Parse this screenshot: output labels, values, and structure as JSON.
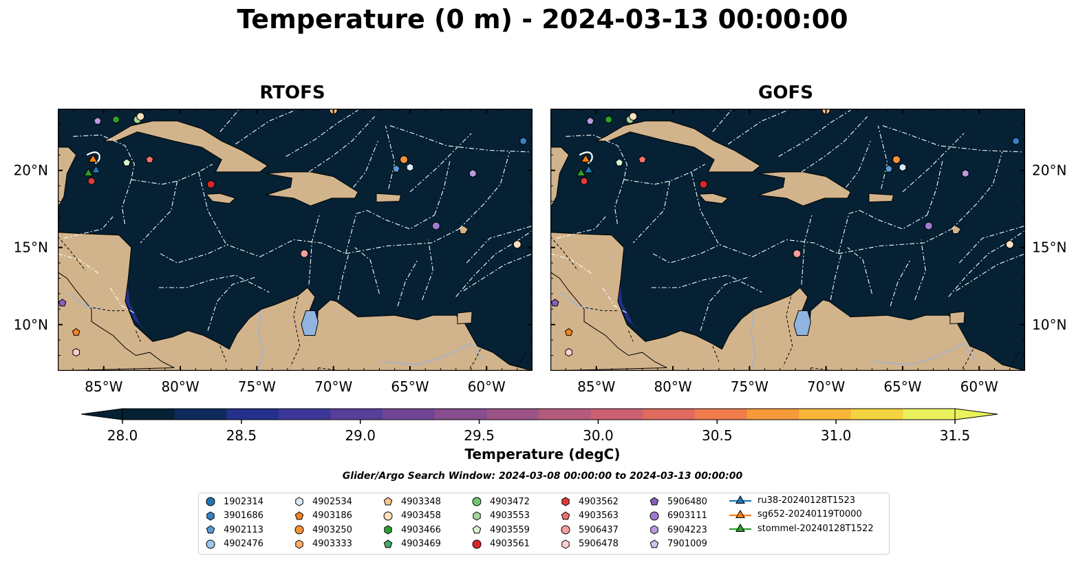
{
  "title": "Temperature (0 m) - 2024-03-13 00:00:00",
  "panels": [
    {
      "name": "RTOFS"
    },
    {
      "name": "GOFS"
    }
  ],
  "map": {
    "lon_range": [
      -88,
      -57
    ],
    "lat_range": [
      7,
      24
    ],
    "lon_ticks": [
      {
        "value": -85,
        "label": "85°W"
      },
      {
        "value": -80,
        "label": "80°W"
      },
      {
        "value": -75,
        "label": "75°W"
      },
      {
        "value": -70,
        "label": "70°W"
      },
      {
        "value": -65,
        "label": "65°W"
      },
      {
        "value": -60,
        "label": "60°W"
      }
    ],
    "lat_ticks": [
      {
        "value": 10,
        "label": "10°N"
      },
      {
        "value": 15,
        "label": "15°N"
      },
      {
        "value": 20,
        "label": "20°N"
      }
    ],
    "colors": {
      "ocean": "#052133",
      "land": "#d2b48c",
      "lake": "#8fb4e0",
      "boundary": "#ffffff"
    }
  },
  "colorbar": {
    "label": "Temperature (degC)",
    "min": 28.0,
    "max": 31.5,
    "step": 0.25,
    "ticks": [
      "28.0",
      "28.5",
      "29.0",
      "29.5",
      "30.0",
      "30.5",
      "31.0",
      "31.5"
    ],
    "colors": [
      "#052133",
      "#0e2a5c",
      "#25308a",
      "#3c3796",
      "#573e98",
      "#6f4594",
      "#874d8d",
      "#9c5486",
      "#b45a7d",
      "#cb6170",
      "#e06a5e",
      "#ef7c4a",
      "#f69a3a",
      "#f7b637",
      "#f4d43e",
      "#e9f25c"
    ],
    "extend_low": "#052133",
    "extend_high": "#e9f25c"
  },
  "search_window": "Glider/Argo Search Window: 2024-03-08 00:00:00 to 2024-03-13 00:00:00",
  "legend": {
    "argo": [
      {
        "label": "1902314",
        "marker": "circle",
        "color": "#1f77b4"
      },
      {
        "label": "3901686",
        "marker": "hexagon",
        "color": "#3a7fc1"
      },
      {
        "label": "4902113",
        "marker": "pentagon",
        "color": "#5b9bd5"
      },
      {
        "label": "4902476",
        "marker": "circle",
        "color": "#9ec7ec"
      },
      {
        "label": "4902534",
        "marker": "hexagon",
        "color": "#dbeafb"
      },
      {
        "label": "4903186",
        "marker": "pentagon",
        "color": "#f58220"
      },
      {
        "label": "4903250",
        "marker": "circle",
        "color": "#f7923a"
      },
      {
        "label": "4903333",
        "marker": "hexagon",
        "color": "#fdae6b"
      },
      {
        "label": "4903348",
        "marker": "pentagon",
        "color": "#fdc68c"
      },
      {
        "label": "4903458",
        "marker": "circle",
        "color": "#fde0c0"
      },
      {
        "label": "4903466",
        "marker": "hexagon",
        "color": "#2ca02c"
      },
      {
        "label": "4903469",
        "marker": "pentagon",
        "color": "#41ab5d"
      },
      {
        "label": "4903472",
        "marker": "circle",
        "color": "#74c476"
      },
      {
        "label": "4903553",
        "marker": "hexagon",
        "color": "#a1d99b"
      },
      {
        "label": "4903559",
        "marker": "pentagon",
        "color": "#d5f5d0"
      },
      {
        "label": "4903561",
        "marker": "circle",
        "color": "#d62728"
      },
      {
        "label": "4903562",
        "marker": "hexagon",
        "color": "#e0393b"
      },
      {
        "label": "4903563",
        "marker": "pentagon",
        "color": "#ef6f6f"
      },
      {
        "label": "5906437",
        "marker": "circle",
        "color": "#f4a0a0"
      },
      {
        "label": "5906478",
        "marker": "hexagon",
        "color": "#fbd0d0"
      },
      {
        "label": "5906480",
        "marker": "pentagon",
        "color": "#8a5fbf"
      },
      {
        "label": "6903111",
        "marker": "circle",
        "color": "#a07ad0"
      },
      {
        "label": "6904223",
        "marker": "hexagon",
        "color": "#bb9be0"
      },
      {
        "label": "7901009",
        "marker": "pentagon",
        "color": "#d4bff0"
      }
    ],
    "gliders": [
      {
        "label": "ru38-20240128T1523",
        "color": "#1f77b4"
      },
      {
        "label": "sg652-20240119T0000",
        "color": "#ff7f0e"
      },
      {
        "label": "stommel-20240128T1522",
        "color": "#2ca02c"
      }
    ]
  },
  "floats_on_map": [
    {
      "lon": -84.2,
      "lat": 23.3,
      "marker": "hexagon",
      "color": "#2ca02c"
    },
    {
      "lon": -82.8,
      "lat": 23.3,
      "marker": "circle",
      "color": "#a1d99b"
    },
    {
      "lon": -82.6,
      "lat": 23.5,
      "marker": "circle",
      "color": "#fde0c0"
    },
    {
      "lon": -85.4,
      "lat": 23.2,
      "marker": "pentagon",
      "color": "#bb9be0"
    },
    {
      "lon": -70.0,
      "lat": 23.9,
      "marker": "circle",
      "color": "#fdc68c"
    },
    {
      "lon": -83.5,
      "lat": 20.5,
      "marker": "pentagon",
      "color": "#d5f5d0"
    },
    {
      "lon": -82.0,
      "lat": 20.7,
      "marker": "pentagon",
      "color": "#ef6f6f"
    },
    {
      "lon": -85.8,
      "lat": 19.3,
      "marker": "hexagon",
      "color": "#e0393b"
    },
    {
      "lon": -78.0,
      "lat": 19.1,
      "marker": "circle",
      "color": "#d62728"
    },
    {
      "lon": -65.4,
      "lat": 20.7,
      "marker": "circle",
      "color": "#f7923a"
    },
    {
      "lon": -65.9,
      "lat": 20.1,
      "marker": "pentagon",
      "color": "#5b9bd5"
    },
    {
      "lon": -65.0,
      "lat": 20.2,
      "marker": "hexagon",
      "color": "#dbeafb"
    },
    {
      "lon": -60.9,
      "lat": 19.8,
      "marker": "hexagon",
      "color": "#bb9be0"
    },
    {
      "lon": -57.6,
      "lat": 21.9,
      "marker": "hexagon",
      "color": "#3a7fc1"
    },
    {
      "lon": -63.3,
      "lat": 16.4,
      "marker": "circle",
      "color": "#a07ad0"
    },
    {
      "lon": -58.0,
      "lat": 15.2,
      "marker": "circle",
      "color": "#fde0c0"
    },
    {
      "lon": -71.9,
      "lat": 14.6,
      "marker": "circle",
      "color": "#f4a0a0"
    },
    {
      "lon": -87.7,
      "lat": 11.4,
      "marker": "pentagon",
      "color": "#8a5fbf"
    },
    {
      "lon": -86.8,
      "lat": 9.5,
      "marker": "pentagon",
      "color": "#f58220"
    },
    {
      "lon": -86.8,
      "lat": 8.2,
      "marker": "hexagon",
      "color": "#fbd0d0"
    }
  ],
  "glider_positions": [
    {
      "lon": -85.5,
      "lat": 20.0,
      "color": "#1f77b4"
    },
    {
      "lon": -85.7,
      "lat": 20.7,
      "color": "#ff7f0e"
    },
    {
      "lon": -86.0,
      "lat": 19.8,
      "color": "#2ca02c"
    }
  ]
}
